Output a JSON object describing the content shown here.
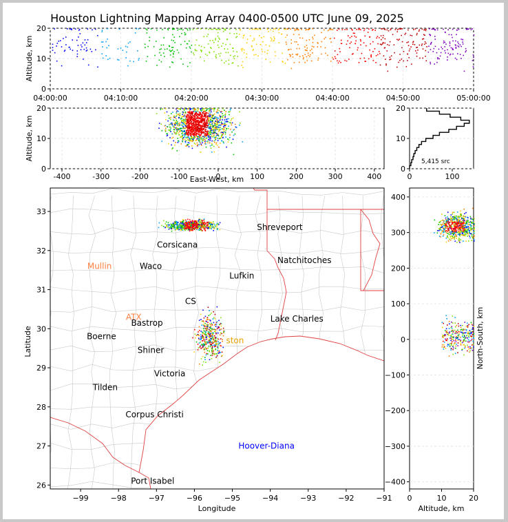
{
  "title": "Houston Lightning Mapping Array 0400-0500 UTC June 09, 2025",
  "chart_data": [
    {
      "panel": "time-altitude",
      "type": "scatter",
      "xlabel": "",
      "ylabel": "Altitude, km",
      "ylim": [
        0,
        20
      ],
      "yticks": [
        "0",
        "10",
        "20"
      ],
      "xtick_labels": [
        "04:00:00",
        "04:10:00",
        "04:20:00",
        "04:30:00",
        "04:40:00",
        "04:50:00",
        "05:00:00"
      ],
      "xlim_minutes": [
        0,
        60
      ],
      "grid": true
    },
    {
      "panel": "east-west-altitude",
      "type": "scatter",
      "xlabel": "East-West, km",
      "ylabel": "Altitude, km",
      "xlim": [
        -430,
        425
      ],
      "ylim": [
        0,
        20
      ],
      "xticks": [
        "-400",
        "-300",
        "-200",
        "-100",
        "0",
        "100",
        "200",
        "300",
        "400"
      ],
      "yticks": [
        "0",
        "10",
        "20"
      ],
      "grid": true
    },
    {
      "panel": "altitude-histogram",
      "type": "line",
      "xlim": [
        0,
        150
      ],
      "ylim": [
        0,
        20
      ],
      "xticks": [
        "0",
        "100"
      ],
      "yticks": [
        "0",
        "10",
        "20"
      ],
      "annotation": "5,415 src",
      "profile": [
        [
          0,
          0.5
        ],
        [
          3,
          1.5
        ],
        [
          5,
          2.5
        ],
        [
          8,
          3.5
        ],
        [
          10,
          4.5
        ],
        [
          13,
          5.5
        ],
        [
          17,
          6.5
        ],
        [
          22,
          7.5
        ],
        [
          28,
          8.5
        ],
        [
          38,
          9.5
        ],
        [
          55,
          10.5
        ],
        [
          70,
          11.5
        ],
        [
          92,
          12.5
        ],
        [
          110,
          13.5
        ],
        [
          128,
          14.5
        ],
        [
          140,
          15.5
        ],
        [
          120,
          16.5
        ],
        [
          95,
          17.5
        ],
        [
          70,
          18.5
        ],
        [
          40,
          19.5
        ]
      ]
    },
    {
      "panel": "plan-view",
      "type": "scatter",
      "xlabel": "Longitude",
      "ylabel": "Latitude",
      "xlim": [
        -99.8,
        -91
      ],
      "ylim": [
        25.9,
        33.6
      ],
      "xticks": [
        "−99",
        "−98",
        "−97",
        "−96",
        "−95",
        "−94",
        "−93",
        "−92",
        "−91"
      ],
      "yticks": [
        "26",
        "27",
        "28",
        "29",
        "30",
        "31",
        "32",
        "33"
      ],
      "clusters": [
        {
          "lon": -96.1,
          "lat": 32.65,
          "intensity": "high"
        },
        {
          "lon": -95.6,
          "lat": 29.8,
          "intensity": "medium"
        }
      ],
      "grid": true
    },
    {
      "panel": "altitude-north-south",
      "type": "scatter",
      "xlabel": "Altitude, km",
      "ylabel": "North-South, km",
      "xlim": [
        0,
        20
      ],
      "ylim": [
        -420,
        425
      ],
      "xticks": [
        "0",
        "10",
        "20"
      ],
      "yticks": [
        "−400",
        "−300",
        "−200",
        "−100",
        "0",
        "100",
        "200",
        "300",
        "400"
      ],
      "grid": true
    }
  ],
  "cities": [
    {
      "name": "Shreveport",
      "lon": -93.75,
      "lat": 32.6,
      "color": "#000000"
    },
    {
      "name": "Corsicana",
      "lon": -96.45,
      "lat": 32.15,
      "color": "#000000"
    },
    {
      "name": "Natchitoches",
      "lon": -93.1,
      "lat": 31.75,
      "color": "#000000"
    },
    {
      "name": "Mullin",
      "lon": -98.5,
      "lat": 31.6,
      "color": "#ff8040"
    },
    {
      "name": "Waco",
      "lon": -97.15,
      "lat": 31.6,
      "color": "#000000"
    },
    {
      "name": "Lufkin",
      "lon": -94.75,
      "lat": 31.35,
      "color": "#000000"
    },
    {
      "name": "CS",
      "lon": -96.1,
      "lat": 30.7,
      "color": "#000000"
    },
    {
      "name": "Lake Charles",
      "lon": -93.3,
      "lat": 30.25,
      "color": "#000000"
    },
    {
      "name": "ATX",
      "lon": -97.6,
      "lat": 30.3,
      "color": "#ff8040"
    },
    {
      "name": "Bastrop",
      "lon": -97.25,
      "lat": 30.15,
      "color": "#000000"
    },
    {
      "name": "Boerne",
      "lon": -98.45,
      "lat": 29.8,
      "color": "#000000"
    },
    {
      "name": "ston",
      "lon": -94.93,
      "lat": 29.7,
      "color": "#e8a000"
    },
    {
      "name": "Shiner",
      "lon": -97.15,
      "lat": 29.45,
      "color": "#000000"
    },
    {
      "name": "Victoria",
      "lon": -96.65,
      "lat": 28.85,
      "color": "#000000"
    },
    {
      "name": "Tilden",
      "lon": -98.35,
      "lat": 28.5,
      "color": "#000000"
    },
    {
      "name": "Corpus Christi",
      "lon": -97.05,
      "lat": 27.8,
      "color": "#000000"
    },
    {
      "name": "Hoover-Diana",
      "lon": -94.1,
      "lat": 27.0,
      "color": "#0000ff"
    },
    {
      "name": "Port Isabel",
      "lon": -97.1,
      "lat": 26.1,
      "color": "#000000"
    }
  ]
}
